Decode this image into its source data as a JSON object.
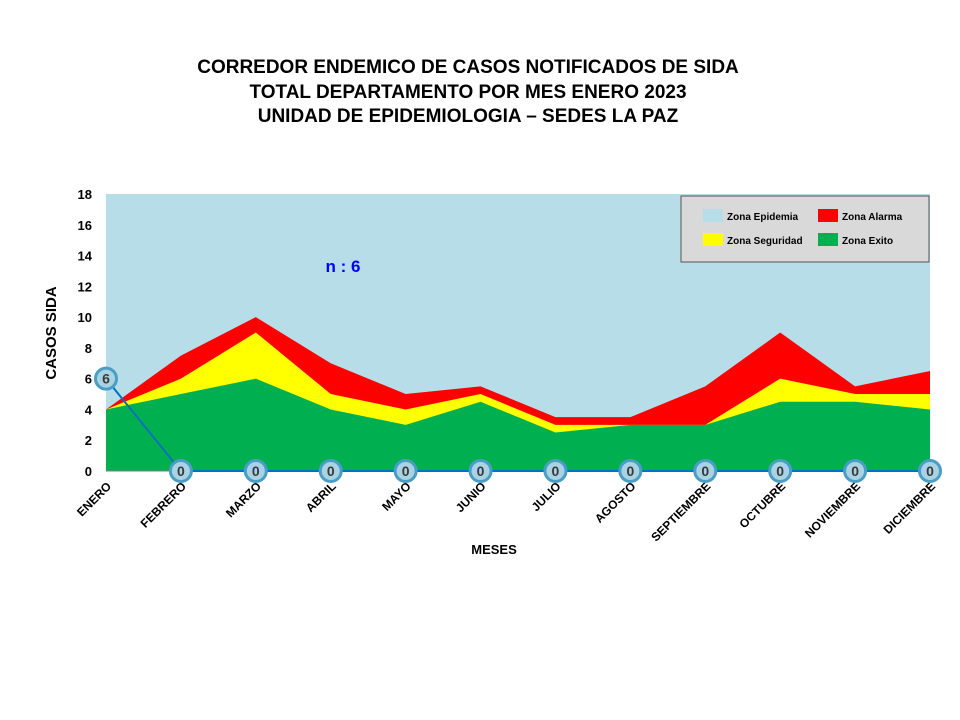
{
  "title_lines": [
    "CORREDOR ENDEMICO  DE CASOS NOTIFICADOS  DE SIDA",
    "TOTAL DEPARTAMENTO  POR MES ENERO  2023",
    "UNIDAD  DE EPIDEMIOLOGIA  – SEDES LA PAZ"
  ],
  "chart_data": {
    "type": "area",
    "xlabel": "MESES",
    "ylabel": "CASOS SIDA",
    "ylim": [
      0,
      18
    ],
    "yticks": [
      0,
      2,
      4,
      6,
      8,
      10,
      12,
      14,
      16,
      18
    ],
    "categories": [
      "ENERO",
      "FEBRERO",
      "MARZO",
      "ABRIL",
      "MAYO",
      "JUNIO",
      "JULIO",
      "AGOSTO",
      "SEPTIEMBRE",
      "OCTUBRE",
      "NOVIEMBRE",
      "DICIEMBRE"
    ],
    "zones": [
      {
        "name": "Zona Epidemia",
        "color": "#b7dde8",
        "values": [
          18,
          18,
          18,
          18,
          18,
          18,
          18,
          18,
          18,
          18,
          18,
          18
        ]
      },
      {
        "name": "Zona Alarma",
        "color": "#ff0000",
        "values": [
          4,
          7.5,
          10,
          7,
          5,
          5.5,
          3.5,
          3.5,
          5.5,
          9,
          5.5,
          6.5
        ]
      },
      {
        "name": "Zona Seguridad",
        "color": "#ffff00",
        "values": [
          4,
          6,
          9,
          5,
          4,
          5,
          3,
          3,
          3,
          6,
          5,
          5
        ]
      },
      {
        "name": "Zona Exito",
        "color": "#00b050",
        "values": [
          4,
          5,
          6,
          4,
          3,
          4.5,
          2.5,
          3,
          3,
          4.5,
          4.5,
          4
        ]
      }
    ],
    "cases": {
      "values": [
        6,
        0,
        0,
        0,
        0,
        0,
        0,
        0,
        0,
        0,
        0,
        0
      ],
      "color": "#0070c0"
    },
    "annotation": "n : 6",
    "legend_position": "top-right",
    "legend_order": [
      "Zona Epidemia",
      "Zona Alarma",
      "Zona Seguridad",
      "Zona Exito"
    ],
    "grid": false
  }
}
